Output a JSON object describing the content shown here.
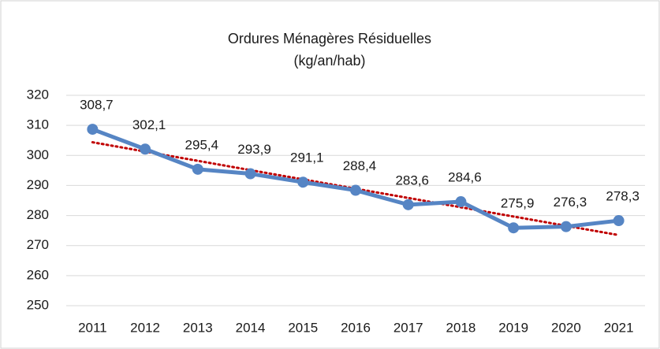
{
  "chart_data": {
    "type": "line",
    "title": "Ordures Ménagères Résiduelles",
    "subtitle": "(kg/an/hab)",
    "categories": [
      "2011",
      "2012",
      "2013",
      "2014",
      "2015",
      "2016",
      "2017",
      "2018",
      "2019",
      "2020",
      "2021"
    ],
    "series": [
      {
        "name": "Ordures Ménagères Résiduelles",
        "color": "#5685c4",
        "values": [
          308.7,
          302.1,
          295.4,
          293.9,
          291.1,
          288.4,
          283.6,
          284.6,
          275.9,
          276.3,
          278.3
        ],
        "value_labels": [
          "308,7",
          "302,1",
          "295,4",
          "293,9",
          "291,1",
          "288,4",
          "283,6",
          "284,6",
          "275,9",
          "276,3",
          "278,3"
        ]
      }
    ],
    "trendline": {
      "kind": "linear",
      "color": "#c00000"
    },
    "ylim": [
      250,
      320
    ],
    "yticks": [
      250,
      260,
      270,
      280,
      290,
      300,
      310,
      320
    ],
    "grid": true
  }
}
